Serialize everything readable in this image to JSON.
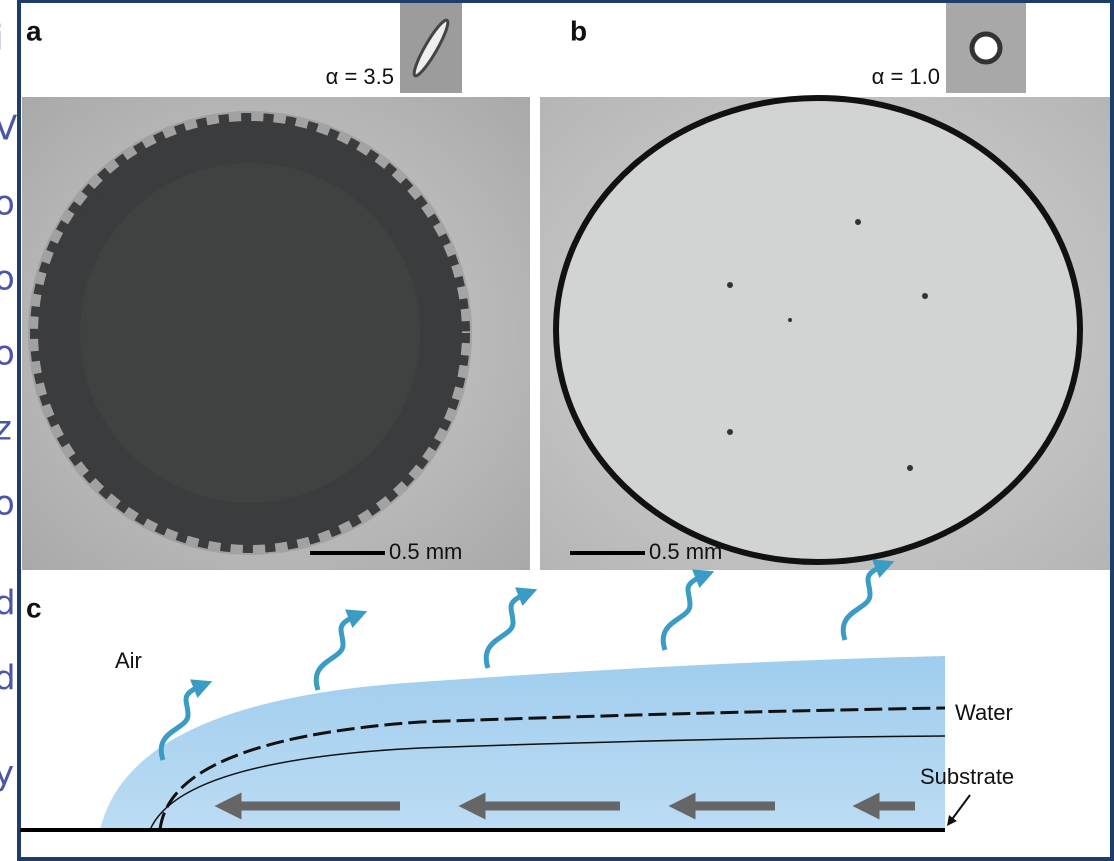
{
  "margin_letters": [
    "i",
    "V",
    "o",
    "o",
    "o",
    "z",
    "o",
    "d",
    "d",
    "y"
  ],
  "panel_a": {
    "label": "a",
    "alpha": "α = 3.5",
    "scale_bar": "0.5 mm"
  },
  "panel_b": {
    "label": "b",
    "alpha": "α = 1.0",
    "scale_bar": "0.5 mm"
  },
  "panel_c": {
    "label": "c",
    "air": "Air",
    "water": "Water",
    "substrate": "Substrate"
  }
}
